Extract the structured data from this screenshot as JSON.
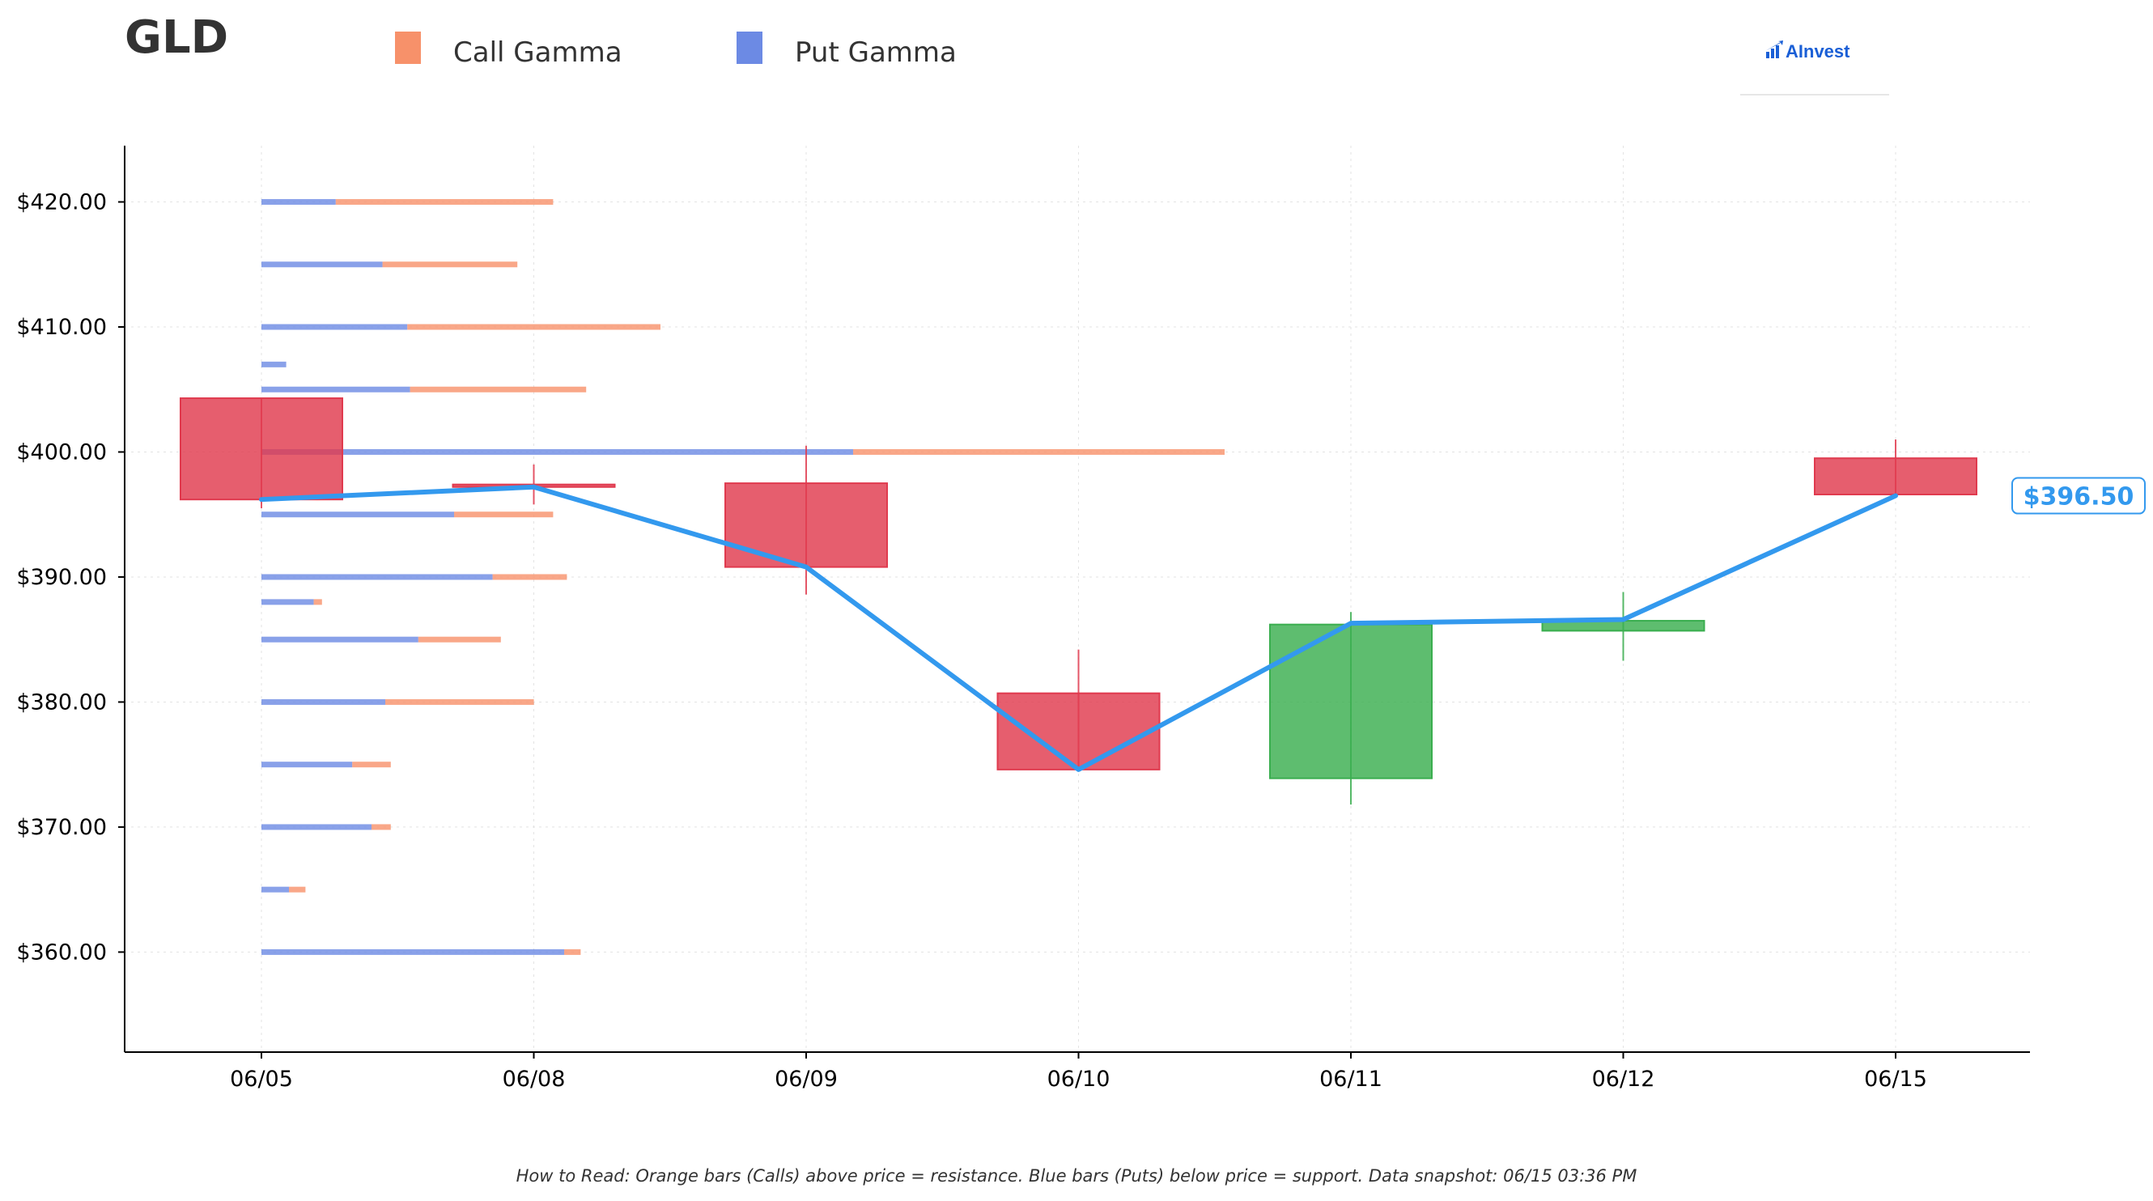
{
  "header": {
    "ticker": "GLD",
    "legend_call": "Call Gamma",
    "legend_put": "Put Gamma",
    "logo_text": "AInvest"
  },
  "footer": {
    "note": "How to Read: Orange bars (Calls) above price = resistance. Blue bars (Puts) below price = support. Data snapshot: 06/15 03:36 PM"
  },
  "colors": {
    "call": "#f7916a",
    "put": "#6c8ae4",
    "bear": "#e03a4e",
    "bull": "#3aae4f",
    "price_line": "#3399ee",
    "logo": "#1a5fd6"
  },
  "chart_data": {
    "type": "candlestick",
    "title": "GLD",
    "categories": [
      "06/05",
      "06/08",
      "06/09",
      "06/10",
      "06/11",
      "06/12",
      "06/15"
    ],
    "ylim": [
      352,
      424.5
    ],
    "yticks": [
      360,
      370,
      380,
      390,
      400,
      410,
      420
    ],
    "ytick_labels": [
      "$360.00",
      "$370.00",
      "$380.00",
      "$390.00",
      "$400.00",
      "$410.00",
      "$420.00"
    ],
    "grid": true,
    "candles": [
      {
        "date": "06/05",
        "open": 404.3,
        "close": 396.2,
        "high": 404.3,
        "low": 395.5
      },
      {
        "date": "06/08",
        "open": 397.4,
        "close": 397.2,
        "high": 399.0,
        "low": 395.8
      },
      {
        "date": "06/09",
        "open": 397.5,
        "close": 390.8,
        "high": 400.5,
        "low": 388.6
      },
      {
        "date": "06/10",
        "open": 380.7,
        "close": 374.6,
        "high": 384.2,
        "low": 374.6
      },
      {
        "date": "06/11",
        "open": 373.9,
        "close": 386.2,
        "high": 387.2,
        "low": 371.8
      },
      {
        "date": "06/12",
        "open": 385.7,
        "close": 386.5,
        "high": 388.8,
        "low": 383.3
      },
      {
        "date": "06/15",
        "open": 399.5,
        "close": 396.6,
        "high": 401.0,
        "low": 396.5
      }
    ],
    "price_line": [
      396.2,
      397.2,
      390.8,
      374.6,
      386.3,
      386.6,
      396.5
    ],
    "current_price_label": "$396.50",
    "gamma_bars": [
      {
        "strike": 420,
        "put": 0.27,
        "call": 0.79
      },
      {
        "strike": 415,
        "put": 0.44,
        "call": 0.49
      },
      {
        "strike": 410,
        "put": 0.53,
        "call": 0.92
      },
      {
        "strike": 407,
        "put": 0.09,
        "call": 0.0
      },
      {
        "strike": 405,
        "put": 0.54,
        "call": 0.64
      },
      {
        "strike": 400,
        "put": 2.15,
        "call": 1.35
      },
      {
        "strike": 395,
        "put": 0.7,
        "call": 0.36
      },
      {
        "strike": 390,
        "put": 0.84,
        "call": 0.27
      },
      {
        "strike": 388,
        "put": 0.19,
        "call": 0.03
      },
      {
        "strike": 385,
        "put": 0.57,
        "call": 0.3
      },
      {
        "strike": 380,
        "put": 0.45,
        "call": 0.54
      },
      {
        "strike": 375,
        "put": 0.33,
        "call": 0.14
      },
      {
        "strike": 370,
        "put": 0.4,
        "call": 0.07
      },
      {
        "strike": 365,
        "put": 0.1,
        "call": 0.06
      },
      {
        "strike": 360,
        "put": 1.1,
        "call": 0.06
      }
    ]
  }
}
